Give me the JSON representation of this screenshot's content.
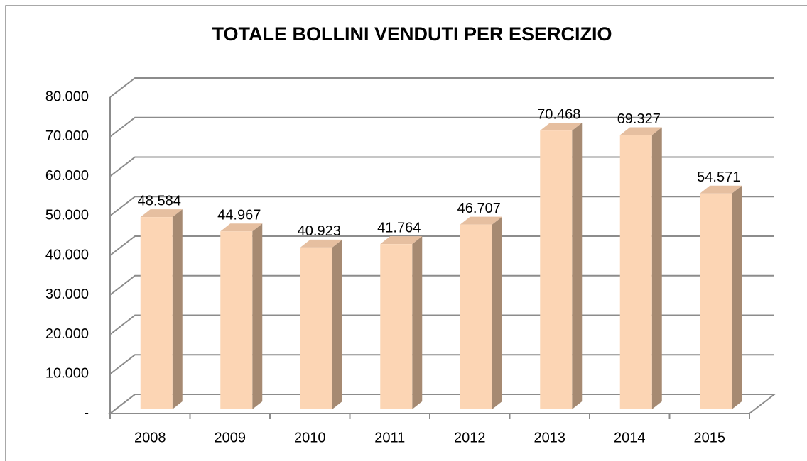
{
  "chart_data": {
    "type": "bar3d",
    "title": "TOTALE BOLLINI VENDUTI PER ESERCIZIO",
    "categories": [
      "2008",
      "2009",
      "2010",
      "2011",
      "2012",
      "2013",
      "2014",
      "2015"
    ],
    "values": [
      48584,
      44967,
      40923,
      41764,
      46707,
      70468,
      69327,
      54571
    ],
    "value_labels": [
      "48.584",
      "44.967",
      "40.923",
      "41.764",
      "46.707",
      "70.468",
      "69.327",
      "54.571"
    ],
    "color": "#fcd5b4",
    "ylim": [
      0,
      80000
    ],
    "yticks": [
      {
        "value": 0,
        "label": "-"
      },
      {
        "value": 10000,
        "label": "10.000"
      },
      {
        "value": 20000,
        "label": "20.000"
      },
      {
        "value": 30000,
        "label": "30.000"
      },
      {
        "value": 40000,
        "label": "40.000"
      },
      {
        "value": 50000,
        "label": "50.000"
      },
      {
        "value": 60000,
        "label": "60.000"
      },
      {
        "value": 70000,
        "label": "70.000"
      },
      {
        "value": 80000,
        "label": "80.000"
      }
    ],
    "grid": true
  }
}
